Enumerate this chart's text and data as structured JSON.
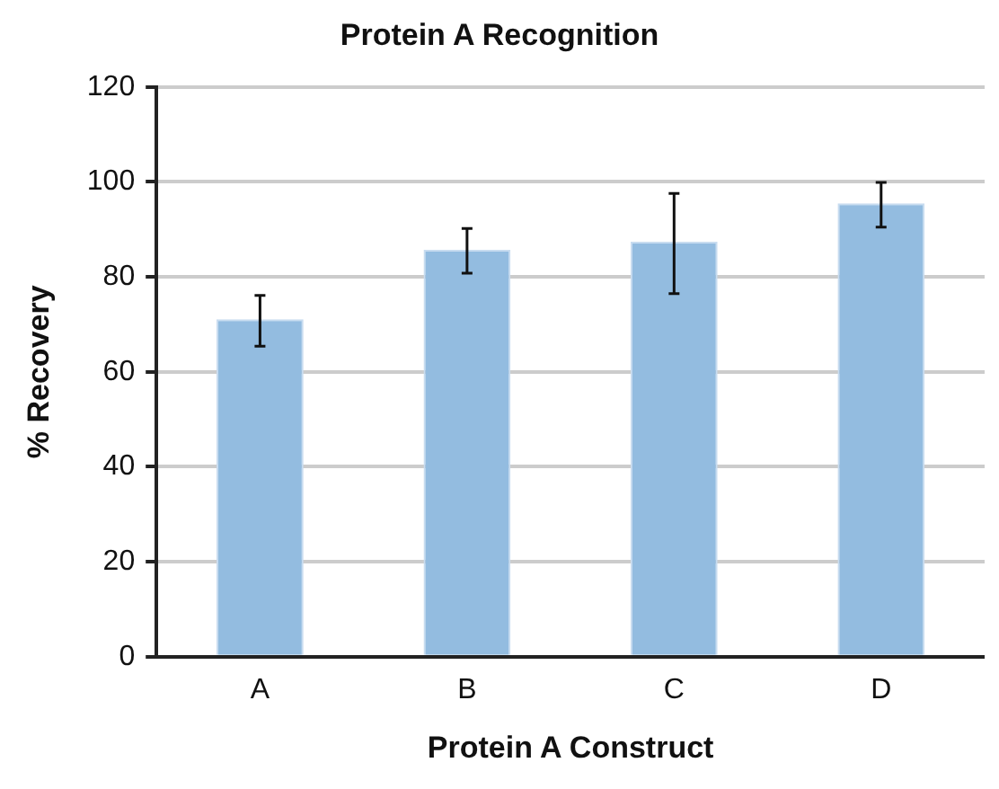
{
  "chart_data": {
    "type": "bar",
    "title": "Protein A Recognition",
    "xlabel": "Protein A Construct",
    "ylabel": "% Recovery",
    "categories": [
      "A",
      "B",
      "C",
      "D"
    ],
    "values": [
      71.1,
      85.7,
      87.4,
      95.5
    ],
    "errors": [
      [
        65.4,
        76.1
      ],
      [
        80.8,
        90.2
      ],
      [
        76.5,
        97.6
      ],
      [
        90.5,
        99.9
      ]
    ],
    "color": "#93bce0",
    "ylim": [
      0,
      120
    ],
    "yticks": [
      0,
      20,
      40,
      60,
      80,
      100,
      120
    ],
    "grid": "y"
  }
}
